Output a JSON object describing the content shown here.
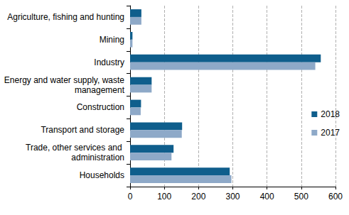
{
  "chart_data": {
    "type": "bar",
    "orientation": "horizontal",
    "categories": [
      "Agriculture, fishing and hunting",
      "Mining",
      "Industry",
      "Energy and water supply, waste management",
      "Construction",
      "Transport and storage",
      "Trade, other services and administration",
      "Households"
    ],
    "series": [
      {
        "name": "2018",
        "color": "#0f5e8c",
        "values": [
          33,
          7,
          557,
          63,
          32,
          152,
          127,
          291
        ]
      },
      {
        "name": "2017",
        "color": "#8ea9c8",
        "values": [
          33,
          7,
          541,
          63,
          31,
          151,
          121,
          296
        ]
      }
    ],
    "xlim": [
      0,
      600
    ],
    "xticks": [
      0,
      100,
      200,
      300,
      400,
      500,
      600
    ],
    "grid": true,
    "legend": "right"
  }
}
